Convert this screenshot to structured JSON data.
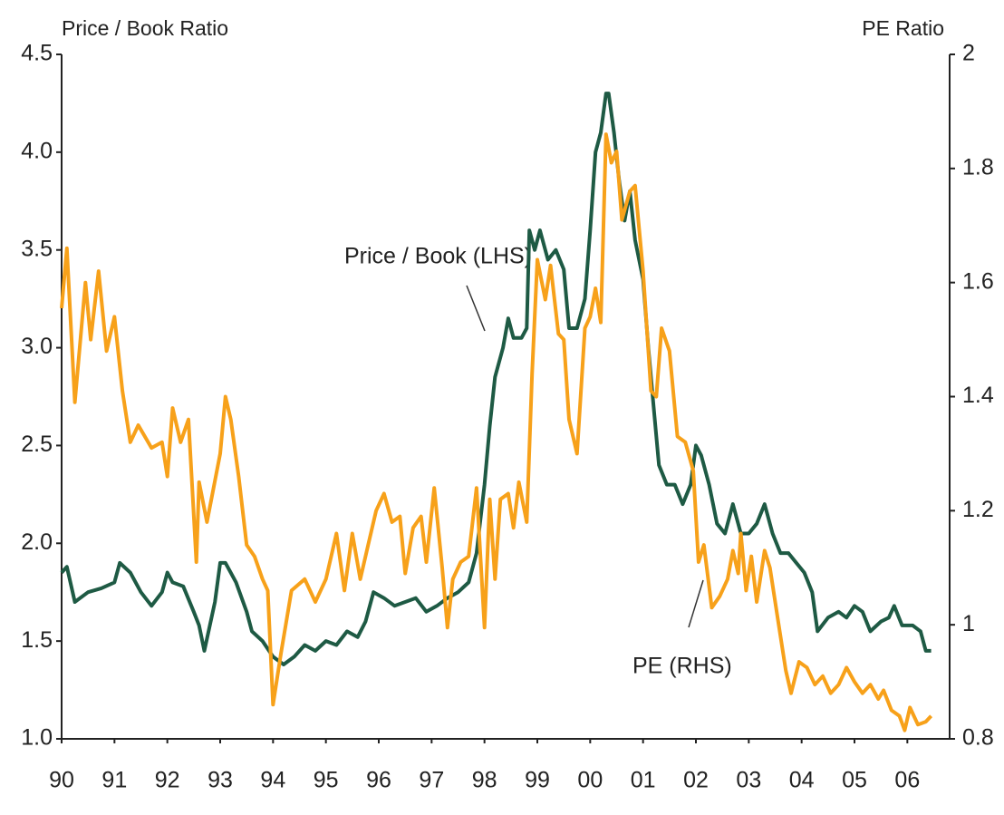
{
  "chart_data": {
    "type": "line",
    "y_label": "Price / Book Ratio",
    "y2_label": "PE Ratio",
    "xlim": [
      1990,
      2006.8
    ],
    "xticks": [
      {
        "value": 1990,
        "label": "90"
      },
      {
        "value": 1991,
        "label": "91"
      },
      {
        "value": 1992,
        "label": "92"
      },
      {
        "value": 1993,
        "label": "93"
      },
      {
        "value": 1994,
        "label": "94"
      },
      {
        "value": 1995,
        "label": "95"
      },
      {
        "value": 1996,
        "label": "96"
      },
      {
        "value": 1997,
        "label": "97"
      },
      {
        "value": 1998,
        "label": "98"
      },
      {
        "value": 1999,
        "label": "99"
      },
      {
        "value": 2000,
        "label": "00"
      },
      {
        "value": 2001,
        "label": "01"
      },
      {
        "value": 2002,
        "label": "02"
      },
      {
        "value": 2003,
        "label": "03"
      },
      {
        "value": 2004,
        "label": "04"
      },
      {
        "value": 2005,
        "label": "05"
      },
      {
        "value": 2006,
        "label": "06"
      }
    ],
    "ylim": [
      1,
      4.5
    ],
    "yticks": [
      {
        "value": 1,
        "label": "1.0"
      },
      1.5,
      {
        "value": 2,
        "label": "2.0"
      },
      2.5,
      {
        "value": 3,
        "label": "3.0"
      },
      3.5,
      {
        "value": 4,
        "label": "4.0"
      },
      4.5
    ],
    "y2lim": [
      0.8,
      2
    ],
    "y2ticks": [
      0.8,
      1,
      1.2,
      1.4,
      1.6,
      1.8,
      2
    ],
    "series": [
      {
        "name": "Price / Book (LHS)",
        "color": "#1e5a44",
        "x": [
          1990.0,
          1990.1,
          1990.25,
          1990.5,
          1990.75,
          1991.0,
          1991.1,
          1991.3,
          1991.5,
          1991.7,
          1991.9,
          1992.0,
          1992.1,
          1992.3,
          1992.5,
          1992.6,
          1992.7,
          1992.9,
          1993.0,
          1993.1,
          1993.3,
          1993.5,
          1993.6,
          1993.8,
          1994.0,
          1994.2,
          1994.4,
          1994.6,
          1994.8,
          1995.0,
          1995.2,
          1995.4,
          1995.6,
          1995.75,
          1995.9,
          1996.1,
          1996.3,
          1996.5,
          1996.7,
          1996.9,
          1997.1,
          1997.3,
          1997.5,
          1997.7,
          1997.85,
          1998.0,
          1998.1,
          1998.2,
          1998.35,
          1998.45,
          1998.55,
          1998.7,
          1998.8,
          1998.85,
          1998.95,
          1999.05,
          1999.2,
          1999.35,
          1999.5,
          1999.6,
          1999.75,
          1999.9,
          2000.0,
          2000.1,
          2000.2,
          2000.3,
          2000.35,
          2000.45,
          2000.55,
          2000.65,
          2000.75,
          2000.85,
          2001.0,
          2001.1,
          2001.2,
          2001.3,
          2001.45,
          2001.6,
          2001.75,
          2001.9,
          2002.0,
          2002.1,
          2002.25,
          2002.4,
          2002.55,
          2002.7,
          2002.85,
          2003.0,
          2003.15,
          2003.3,
          2003.45,
          2003.6,
          2003.75,
          2003.9,
          2004.05,
          2004.2,
          2004.3,
          2004.5,
          2004.7,
          2004.85,
          2005.0,
          2005.15,
          2005.3,
          2005.5,
          2005.65,
          2005.75,
          2005.9,
          2006.1,
          2006.25,
          2006.35,
          2006.45
        ],
        "values": [
          1.85,
          1.88,
          1.7,
          1.75,
          1.77,
          1.8,
          1.9,
          1.85,
          1.75,
          1.68,
          1.75,
          1.85,
          1.8,
          1.78,
          1.65,
          1.58,
          1.45,
          1.7,
          1.9,
          1.9,
          1.8,
          1.65,
          1.55,
          1.5,
          1.42,
          1.38,
          1.42,
          1.48,
          1.45,
          1.5,
          1.48,
          1.55,
          1.52,
          1.6,
          1.75,
          1.72,
          1.68,
          1.7,
          1.72,
          1.65,
          1.68,
          1.72,
          1.75,
          1.8,
          1.95,
          2.3,
          2.6,
          2.85,
          3.0,
          3.15,
          3.05,
          3.05,
          3.1,
          3.6,
          3.5,
          3.6,
          3.45,
          3.5,
          3.4,
          3.1,
          3.1,
          3.25,
          3.6,
          4.0,
          4.1,
          4.3,
          4.3,
          4.1,
          3.85,
          3.65,
          3.8,
          3.55,
          3.35,
          3.0,
          2.7,
          2.4,
          2.3,
          2.3,
          2.2,
          2.3,
          2.5,
          2.45,
          2.3,
          2.1,
          2.05,
          2.2,
          2.05,
          2.05,
          2.1,
          2.2,
          2.05,
          1.95,
          1.95,
          1.9,
          1.85,
          1.75,
          1.55,
          1.62,
          1.65,
          1.62,
          1.68,
          1.65,
          1.55,
          1.6,
          1.62,
          1.68,
          1.58,
          1.58,
          1.55,
          1.45,
          1.45
        ]
      },
      {
        "name": "PE (RHS)",
        "color": "#f7a11a",
        "axis": "y2",
        "x": [
          1990.0,
          1990.1,
          1990.25,
          1990.45,
          1990.55,
          1990.7,
          1990.85,
          1991.0,
          1991.15,
          1991.3,
          1991.45,
          1991.7,
          1991.9,
          1992.0,
          1992.1,
          1992.25,
          1992.4,
          1992.55,
          1992.6,
          1992.75,
          1993.0,
          1993.1,
          1993.2,
          1993.35,
          1993.5,
          1993.65,
          1993.8,
          1993.9,
          1994.0,
          1994.15,
          1994.35,
          1994.6,
          1994.8,
          1995.0,
          1995.2,
          1995.35,
          1995.5,
          1995.65,
          1995.8,
          1995.95,
          1996.1,
          1996.25,
          1996.4,
          1996.5,
          1996.65,
          1996.8,
          1996.9,
          1997.05,
          1997.2,
          1997.3,
          1997.4,
          1997.55,
          1997.7,
          1997.85,
          1998.0,
          1998.1,
          1998.2,
          1998.3,
          1998.45,
          1998.55,
          1998.65,
          1998.8,
          1998.9,
          1999.0,
          1999.15,
          1999.25,
          1999.4,
          1999.5,
          1999.6,
          1999.75,
          1999.9,
          2000.0,
          2000.1,
          2000.2,
          2000.3,
          2000.4,
          2000.5,
          2000.6,
          2000.75,
          2000.85,
          2001.0,
          2001.15,
          2001.25,
          2001.35,
          2001.5,
          2001.65,
          2001.8,
          2001.95,
          2002.05,
          2002.15,
          2002.3,
          2002.45,
          2002.6,
          2002.7,
          2002.8,
          2002.85,
          2002.95,
          2003.05,
          2003.15,
          2003.3,
          2003.4,
          2003.55,
          2003.7,
          2003.8,
          2003.95,
          2004.1,
          2004.25,
          2004.4,
          2004.55,
          2004.7,
          2004.85,
          2005.0,
          2005.15,
          2005.3,
          2005.45,
          2005.55,
          2005.7,
          2005.85,
          2005.95,
          2006.05,
          2006.2,
          2006.35,
          2006.45
        ],
        "values": [
          1.555,
          1.66,
          1.39,
          1.6,
          1.5,
          1.62,
          1.48,
          1.54,
          1.41,
          1.32,
          1.35,
          1.31,
          1.32,
          1.26,
          1.38,
          1.32,
          1.36,
          1.11,
          1.25,
          1.18,
          1.3,
          1.4,
          1.36,
          1.26,
          1.14,
          1.12,
          1.08,
          1.06,
          0.86,
          0.95,
          1.06,
          1.08,
          1.04,
          1.08,
          1.16,
          1.06,
          1.16,
          1.08,
          1.14,
          1.2,
          1.23,
          1.18,
          1.19,
          1.09,
          1.17,
          1.19,
          1.11,
          1.24,
          1.1,
          0.995,
          1.08,
          1.11,
          1.12,
          1.24,
          0.995,
          1.22,
          1.08,
          1.22,
          1.23,
          1.17,
          1.25,
          1.18,
          1.44,
          1.64,
          1.57,
          1.63,
          1.51,
          1.5,
          1.36,
          1.3,
          1.52,
          1.54,
          1.59,
          1.53,
          1.86,
          1.81,
          1.83,
          1.71,
          1.76,
          1.77,
          1.62,
          1.41,
          1.4,
          1.52,
          1.48,
          1.33,
          1.32,
          1.27,
          1.11,
          1.14,
          1.03,
          1.05,
          1.08,
          1.13,
          1.09,
          1.16,
          1.06,
          1.12,
          1.04,
          1.13,
          1.1,
          1.01,
          0.92,
          0.88,
          0.935,
          0.925,
          0.895,
          0.91,
          0.88,
          0.895,
          0.925,
          0.9,
          0.88,
          0.895,
          0.87,
          0.885,
          0.85,
          0.84,
          0.815,
          0.855,
          0.825,
          0.83,
          0.84
        ]
      }
    ]
  }
}
